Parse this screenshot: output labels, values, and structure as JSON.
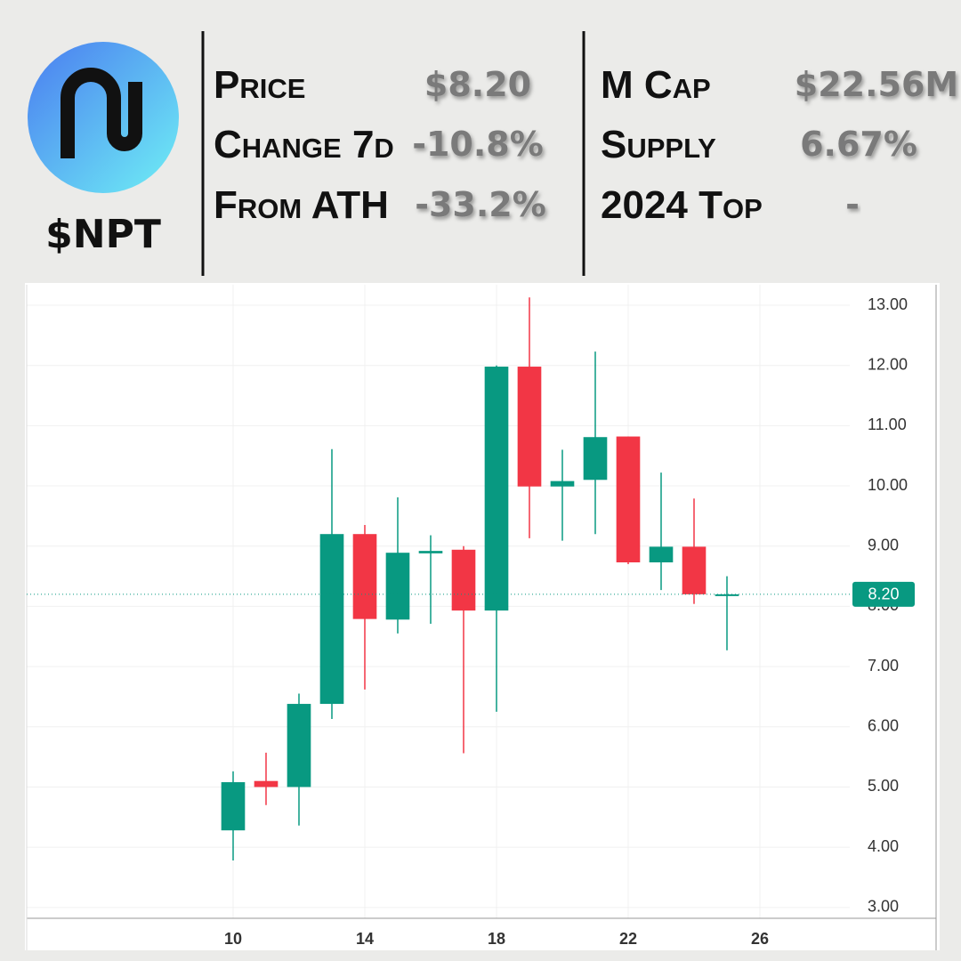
{
  "header": {
    "ticker": "$NPT",
    "stats_left": [
      {
        "label": "Price",
        "value": "$8.20"
      },
      {
        "label": "Change 7d",
        "value": "-10.8%"
      },
      {
        "label": "From ATH",
        "value": "-33.2%"
      }
    ],
    "stats_right": [
      {
        "label": "M Cap",
        "value": "$22.56M"
      },
      {
        "label": "Supply",
        "value": "6.67%"
      },
      {
        "label": "2024 Top",
        "value": "-"
      }
    ]
  },
  "chart_data": {
    "type": "candlestick",
    "x": [
      10,
      11,
      12,
      13,
      14,
      15,
      16,
      17,
      18,
      19,
      20,
      21,
      22,
      23,
      24,
      25
    ],
    "open": [
      4.28,
      5.1,
      5.0,
      6.38,
      9.2,
      7.78,
      8.88,
      8.94,
      7.93,
      11.98,
      9.99,
      10.1,
      10.82,
      8.73,
      8.99,
      8.2
    ],
    "high": [
      5.26,
      5.57,
      6.55,
      10.61,
      9.35,
      9.81,
      9.18,
      9.0,
      12.0,
      13.13,
      10.6,
      12.23,
      10.82,
      10.22,
      9.79,
      8.5
    ],
    "low": [
      3.78,
      4.7,
      4.36,
      6.13,
      6.62,
      7.55,
      7.71,
      5.56,
      6.25,
      9.13,
      9.09,
      9.2,
      8.7,
      8.27,
      8.04,
      7.27
    ],
    "close": [
      5.08,
      5.0,
      6.38,
      9.2,
      7.79,
      8.89,
      8.92,
      7.93,
      11.98,
      9.99,
      10.08,
      10.81,
      8.73,
      8.99,
      8.2,
      8.2
    ],
    "up_color": "#089981",
    "down_color": "#f23645",
    "xlim": [
      3.73,
      28.73
    ],
    "ylim": [
      2.82,
      13.34
    ],
    "xticks": [
      10,
      14,
      18,
      22,
      26
    ],
    "yticks": [
      {
        "value": 3,
        "label": "3.00"
      },
      {
        "value": 4,
        "label": "4.00"
      },
      {
        "value": 5,
        "label": "5.00"
      },
      {
        "value": 6,
        "label": "6.00"
      },
      {
        "value": 7,
        "label": "7.00"
      },
      {
        "value": 8,
        "label": "8.00"
      },
      {
        "value": 9,
        "label": "9.00"
      },
      {
        "value": 10,
        "label": "10.00"
      },
      {
        "value": 11,
        "label": "11.00"
      },
      {
        "value": 12,
        "label": "12.00"
      },
      {
        "value": 13,
        "label": "13.00"
      }
    ],
    "grid": true,
    "price_line": {
      "value": 8.2,
      "label": "8.20"
    }
  }
}
